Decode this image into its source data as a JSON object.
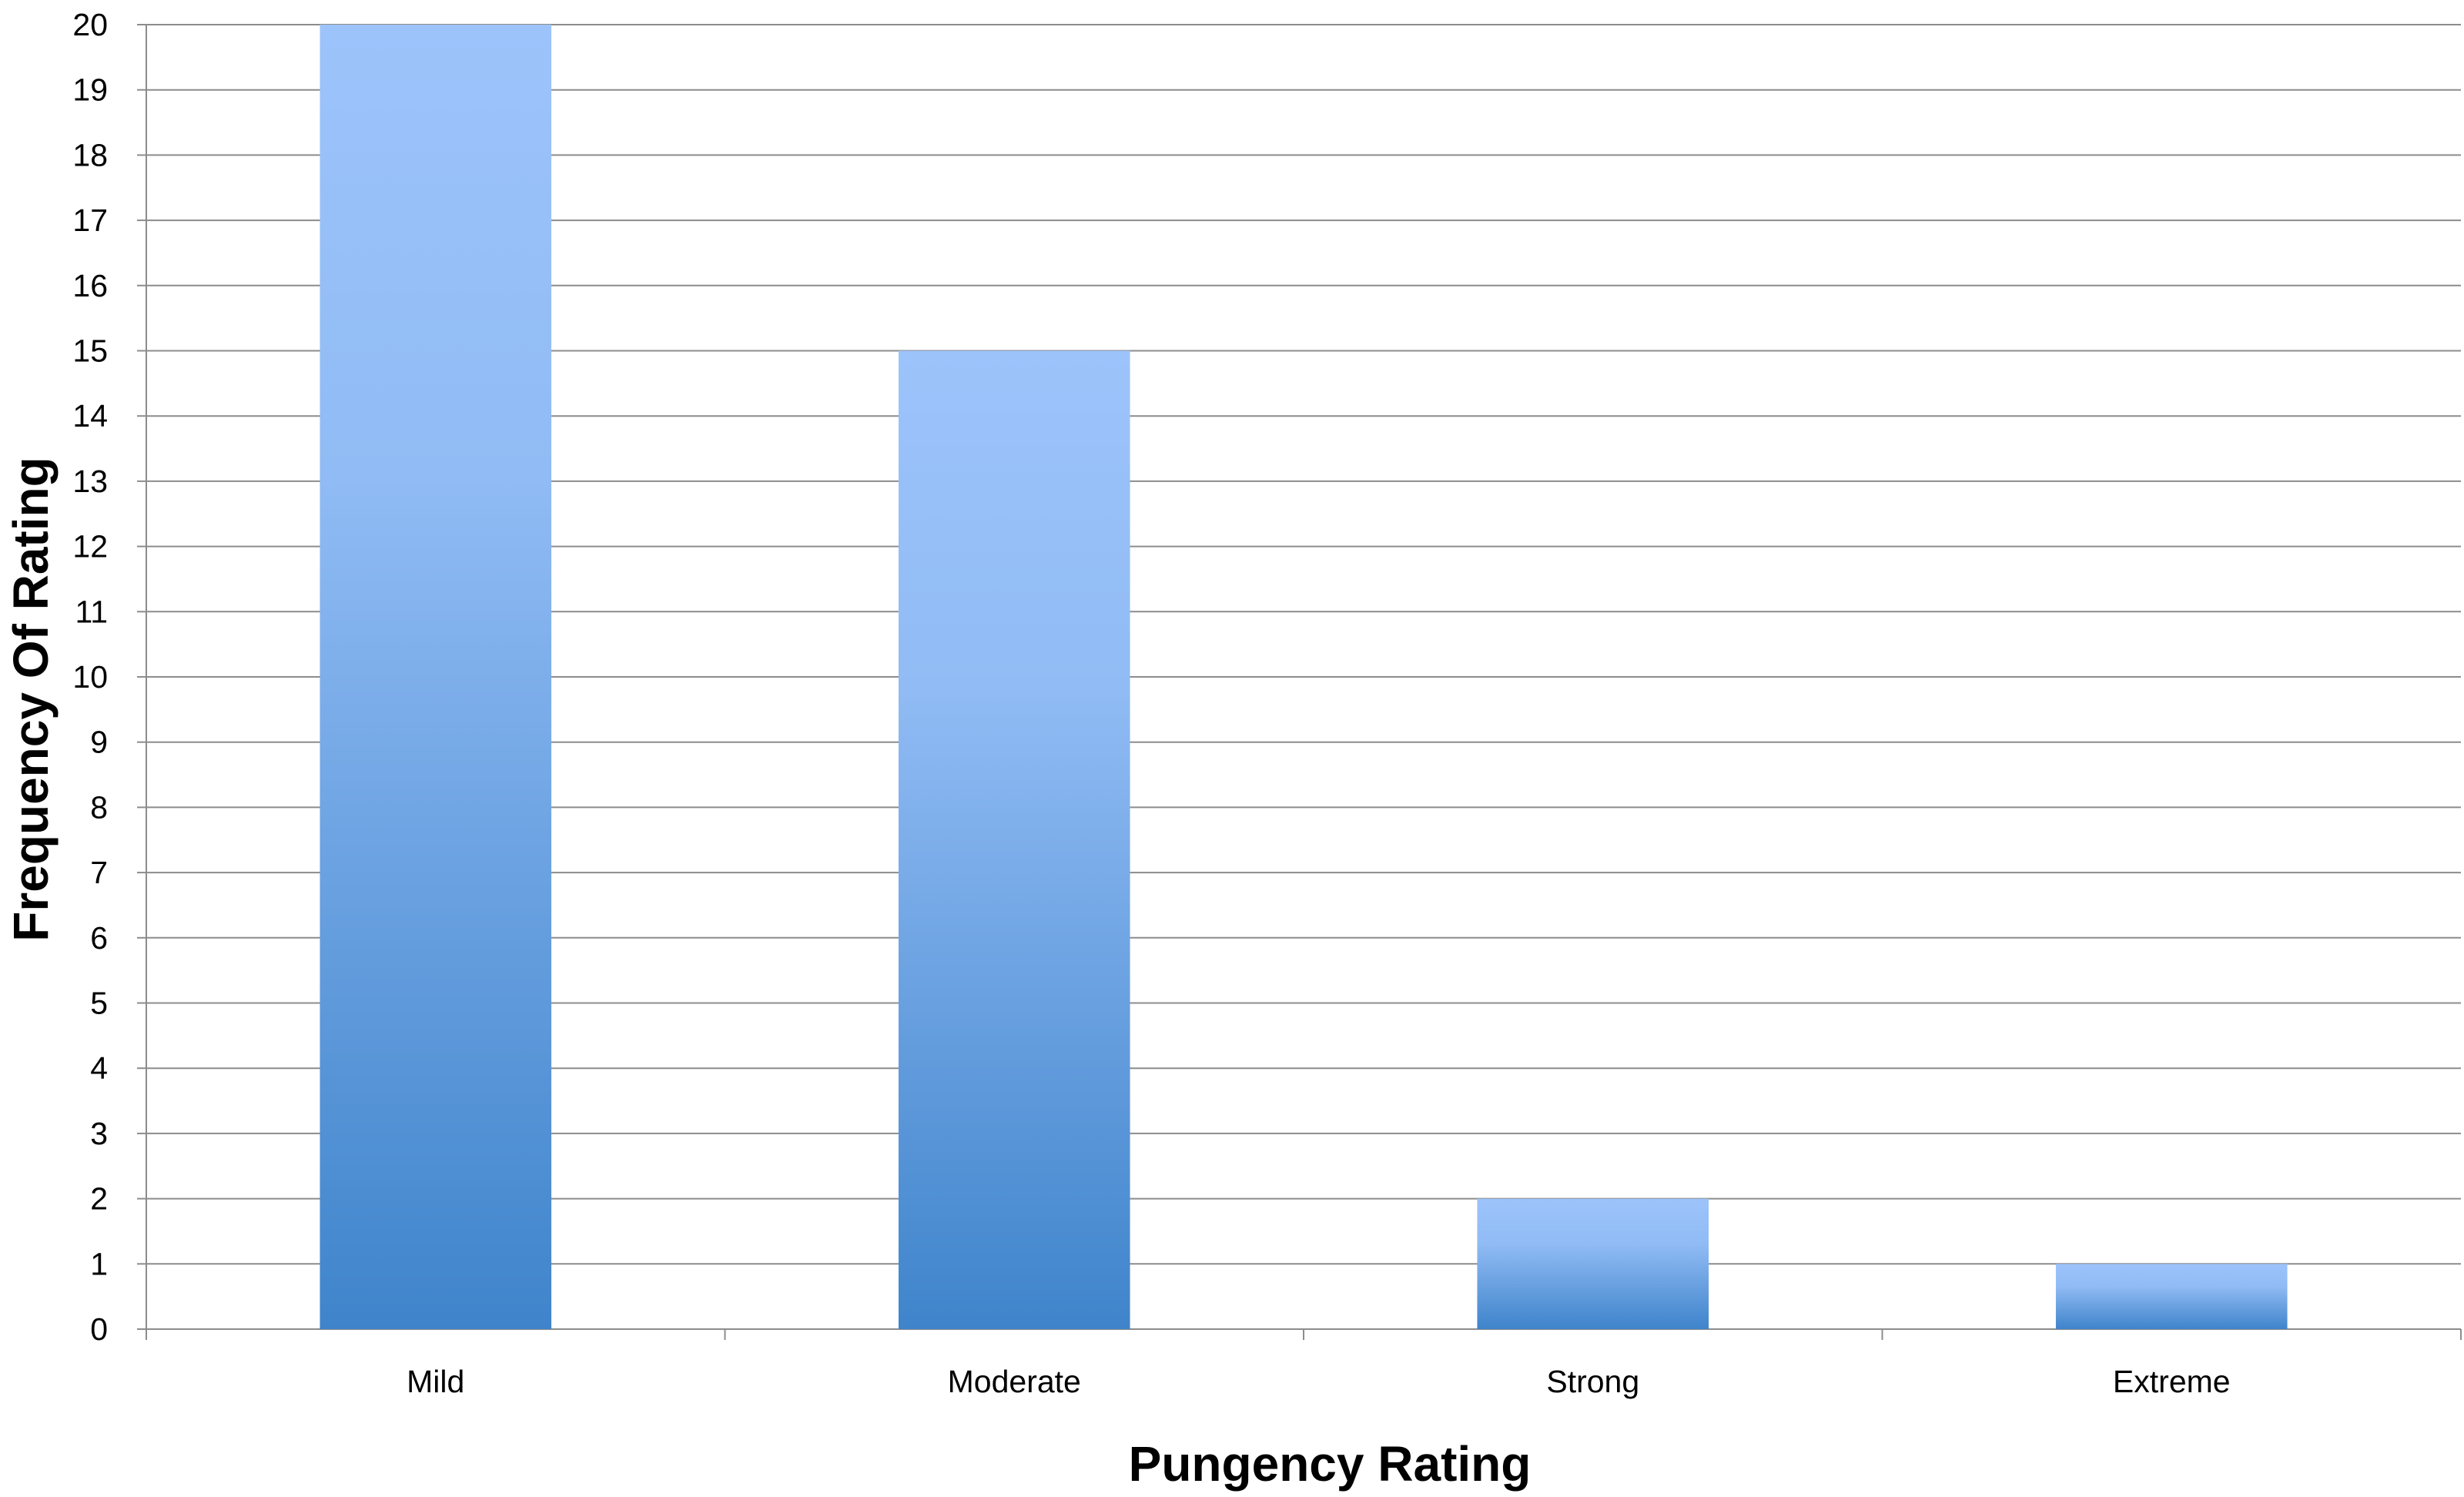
{
  "chart_data": {
    "type": "bar",
    "title": "",
    "xlabel": "Pungency Rating",
    "ylabel": "Frequency Of Rating",
    "categories": [
      "Mild",
      "Moderate",
      "Strong",
      "Extreme"
    ],
    "values": [
      20,
      15,
      2,
      1
    ],
    "ylim": [
      0,
      20
    ],
    "yticks": [
      0,
      1,
      2,
      3,
      4,
      5,
      6,
      7,
      8,
      9,
      10,
      11,
      12,
      13,
      14,
      15,
      16,
      17,
      18,
      19,
      20
    ],
    "grid": true,
    "legend": "none",
    "colors": {
      "bar_top": "#9dc3fb",
      "bar_bottom": "#3f84cb",
      "grid": "#8c8c8c"
    }
  }
}
